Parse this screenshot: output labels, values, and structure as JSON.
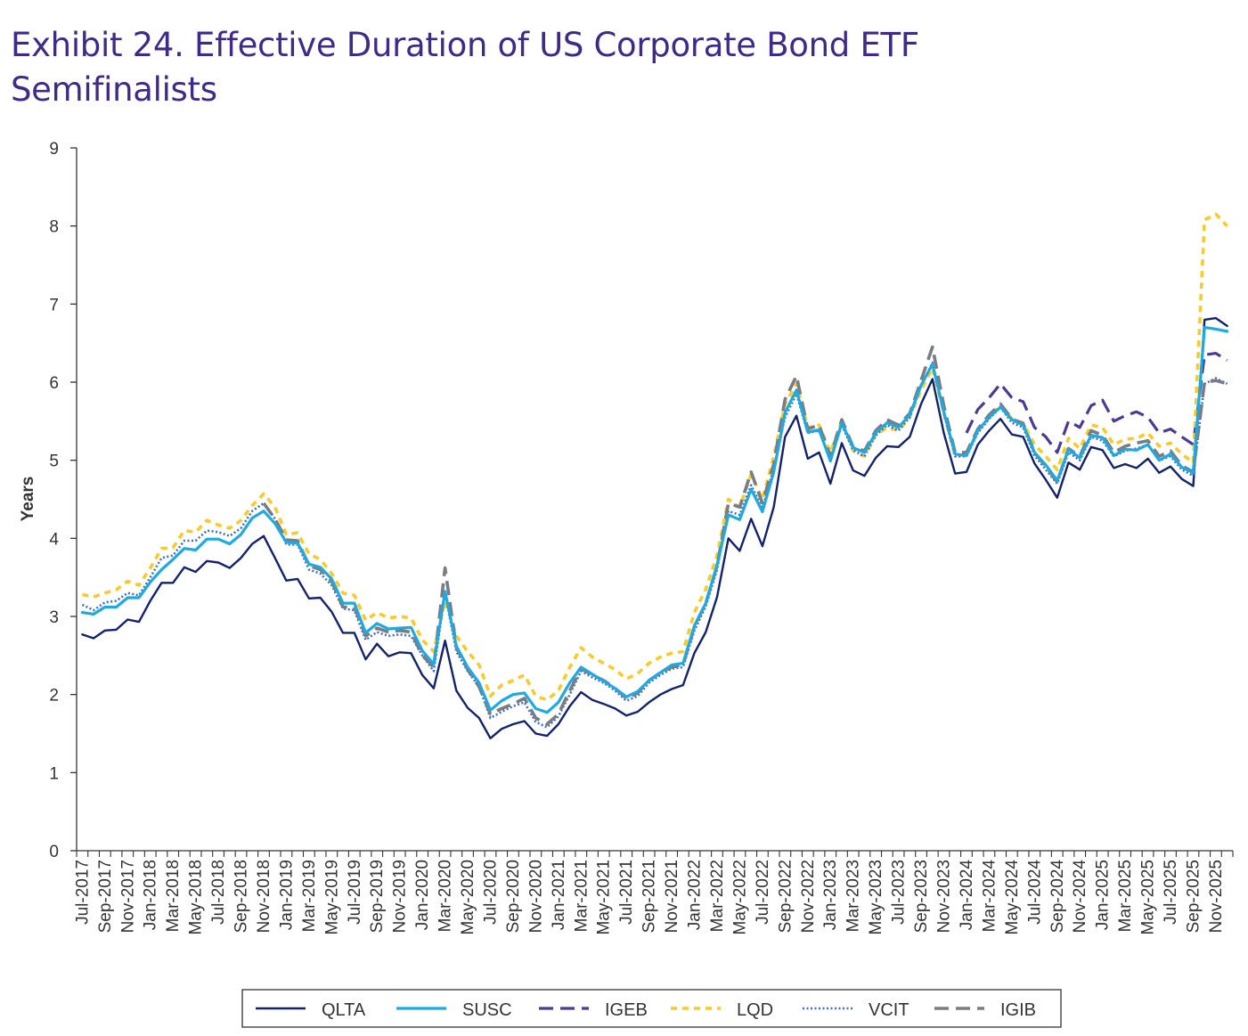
{
  "title": "Exhibit 24. Effective Duration of US Corporate Bond ETF Semifinalists",
  "chart_data": {
    "type": "line",
    "title": "Exhibit 24. Effective Duration of US Corporate Bond ETF Semifinalists",
    "xlabel": "",
    "ylabel": "Years",
    "ylim": [
      0,
      9
    ],
    "yticks": [
      0,
      1,
      2,
      3,
      4,
      5,
      6,
      7,
      8,
      9
    ],
    "grid": false,
    "legend_position": "bottom",
    "x": [
      "Jul-2017",
      "Aug-2017",
      "Sep-2017",
      "Oct-2017",
      "Nov-2017",
      "Dec-2017",
      "Jan-2018",
      "Feb-2018",
      "Mar-2018",
      "Apr-2018",
      "May-2018",
      "Jun-2018",
      "Jul-2018",
      "Aug-2018",
      "Sep-2018",
      "Oct-2018",
      "Nov-2018",
      "Dec-2018",
      "Jan-2019",
      "Feb-2019",
      "Mar-2019",
      "Apr-2019",
      "May-2019",
      "Jun-2019",
      "Jul-2019",
      "Aug-2019",
      "Sep-2019",
      "Oct-2019",
      "Nov-2019",
      "Dec-2019",
      "Jan-2020",
      "Feb-2020",
      "Mar-2020",
      "Apr-2020",
      "May-2020",
      "Jun-2020",
      "Jul-2020",
      "Aug-2020",
      "Sep-2020",
      "Oct-2020",
      "Nov-2020",
      "Dec-2020",
      "Jan-2021",
      "Feb-2021",
      "Mar-2021",
      "Apr-2021",
      "May-2021",
      "Jun-2021",
      "Jul-2021",
      "Aug-2021",
      "Sep-2021",
      "Oct-2021",
      "Nov-2021",
      "Dec-2021",
      "Jan-2022",
      "Feb-2022",
      "Mar-2022",
      "Apr-2022",
      "May-2022",
      "Jun-2022",
      "Jul-2022",
      "Aug-2022",
      "Sep-2022",
      "Oct-2022",
      "Nov-2022",
      "Dec-2022",
      "Jan-2023",
      "Feb-2023",
      "Mar-2023",
      "Apr-2023",
      "May-2023",
      "Jun-2023",
      "Jul-2023",
      "Aug-2023",
      "Sep-2023",
      "Oct-2023",
      "Nov-2023",
      "Dec-2023",
      "Jan-2024",
      "Feb-2024",
      "Mar-2024",
      "Apr-2024",
      "May-2024",
      "Jun-2024",
      "Jul-2024",
      "Aug-2024",
      "Sep-2024",
      "Oct-2024",
      "Nov-2024",
      "Dec-2024",
      "Jan-2025",
      "Feb-2025",
      "Mar-2025",
      "Apr-2025",
      "May-2025",
      "Jun-2025",
      "Jul-2025",
      "Aug-2025",
      "Sep-2025",
      "Oct-2025",
      "Nov-2025",
      "Dec-2025"
    ],
    "x_tick_labels": [
      "Jul-2017",
      "Sep-2017",
      "Nov-2017",
      "Jan-2018",
      "Mar-2018",
      "May-2018",
      "Jul-2018",
      "Sep-2018",
      "Nov-2018",
      "Jan-2019",
      "Mar-2019",
      "May-2019",
      "Jul-2019",
      "Sep-2019",
      "Nov-2019",
      "Jan-2020",
      "Mar-2020",
      "May-2020",
      "Jul-2020",
      "Sep-2020",
      "Nov-2020",
      "Jan-2021",
      "Mar-2021",
      "May-2021",
      "Jul-2021",
      "Sep-2021",
      "Nov-2021",
      "Jan-2022",
      "Mar-2022",
      "May-2022",
      "Jul-2022",
      "Sep-2022",
      "Nov-2022",
      "Jan-2023",
      "Mar-2023",
      "May-2023",
      "Jul-2023",
      "Sep-2023",
      "Nov-2023",
      "Jan-2024",
      "Mar-2024",
      "May-2024",
      "Jul-2024",
      "Sep-2024",
      "Nov-2024",
      "Jan-2025",
      "Mar-2025",
      "May-2025",
      "Jul-2025",
      "Sep-2025",
      "Nov-2025"
    ],
    "series": [
      {
        "name": "QLTA",
        "color": "#13226b",
        "style": "solid",
        "values": [
          2.77,
          2.72,
          2.82,
          2.83,
          2.96,
          2.93,
          3.2,
          3.43,
          3.43,
          3.63,
          3.57,
          3.71,
          3.69,
          3.62,
          3.75,
          3.93,
          4.03,
          3.75,
          3.46,
          3.48,
          3.23,
          3.24,
          3.06,
          2.79,
          2.79,
          2.45,
          2.65,
          2.49,
          2.54,
          2.53,
          2.25,
          2.08,
          2.69,
          2.05,
          1.83,
          1.7,
          1.44,
          1.56,
          1.62,
          1.66,
          1.5,
          1.47,
          1.62,
          1.85,
          2.03,
          1.93,
          1.88,
          1.82,
          1.73,
          1.78,
          1.9,
          2.0,
          2.07,
          2.12,
          2.53,
          2.8,
          3.25,
          4.0,
          3.84,
          4.25,
          3.9,
          4.4,
          5.3,
          5.57,
          5.02,
          5.1,
          4.7,
          5.22,
          4.87,
          4.8,
          5.03,
          5.18,
          5.17,
          5.3,
          5.72,
          6.04,
          5.35,
          4.83,
          4.85,
          5.2,
          5.38,
          5.53,
          5.33,
          5.3,
          4.96,
          4.75,
          4.52,
          4.97,
          4.88,
          5.17,
          5.13,
          4.9,
          4.95,
          4.9,
          5.02,
          4.84,
          4.92,
          4.76,
          4.67,
          6.8,
          6.82,
          6.72
        ]
      },
      {
        "name": "SUSC",
        "color": "#1fa9e1",
        "style": "solid",
        "values": [
          3.05,
          3.03,
          3.12,
          3.12,
          3.24,
          3.24,
          3.44,
          3.6,
          3.73,
          3.87,
          3.85,
          3.99,
          3.99,
          3.93,
          4.05,
          4.26,
          4.35,
          4.19,
          3.95,
          3.94,
          3.67,
          3.63,
          3.48,
          3.17,
          3.17,
          2.79,
          2.91,
          2.84,
          2.85,
          2.86,
          2.56,
          2.39,
          3.32,
          2.62,
          2.35,
          2.15,
          1.8,
          1.92,
          2.0,
          2.02,
          1.82,
          1.77,
          1.9,
          2.15,
          2.35,
          2.26,
          2.17,
          2.08,
          1.97,
          2.04,
          2.18,
          2.28,
          2.38,
          2.4,
          2.88,
          3.17,
          3.66,
          4.3,
          4.24,
          4.63,
          4.34,
          4.85,
          5.61,
          5.9,
          5.36,
          5.39,
          4.99,
          5.48,
          5.16,
          5.1,
          5.35,
          5.48,
          5.42,
          5.58,
          5.96,
          6.23,
          5.62,
          5.08,
          5.06,
          5.38,
          5.55,
          5.68,
          5.52,
          5.45,
          5.1,
          4.94,
          4.74,
          5.14,
          5.03,
          5.32,
          5.29,
          5.06,
          5.14,
          5.13,
          5.2,
          5.0,
          5.08,
          4.91,
          4.84,
          6.7,
          6.68,
          6.65
        ]
      },
      {
        "name": "IGEB",
        "color": "#4e3a92",
        "style": "longdash",
        "values": [
          null,
          null,
          null,
          null,
          null,
          null,
          null,
          null,
          null,
          null,
          null,
          null,
          null,
          null,
          null,
          null,
          null,
          null,
          null,
          null,
          null,
          null,
          null,
          null,
          null,
          null,
          null,
          null,
          null,
          null,
          null,
          null,
          null,
          null,
          null,
          null,
          null,
          null,
          null,
          null,
          null,
          null,
          null,
          null,
          null,
          null,
          null,
          null,
          null,
          null,
          null,
          null,
          null,
          null,
          null,
          null,
          null,
          null,
          null,
          null,
          null,
          null,
          null,
          null,
          null,
          null,
          null,
          null,
          null,
          null,
          null,
          null,
          null,
          null,
          null,
          null,
          null,
          null,
          5.35,
          5.65,
          5.8,
          5.98,
          5.8,
          5.75,
          5.42,
          5.3,
          5.1,
          5.5,
          5.42,
          5.7,
          5.77,
          5.5,
          5.57,
          5.62,
          5.55,
          5.35,
          5.4,
          5.3,
          5.2,
          6.35,
          6.37,
          6.28
        ]
      },
      {
        "name": "LQD",
        "color": "#f6cb2a",
        "style": "shortdash",
        "values": [
          3.28,
          3.25,
          3.3,
          3.34,
          3.45,
          3.4,
          3.62,
          3.87,
          3.88,
          4.1,
          4.08,
          4.23,
          4.17,
          4.13,
          4.23,
          4.42,
          4.57,
          4.4,
          4.05,
          4.07,
          3.8,
          3.73,
          3.55,
          3.3,
          3.27,
          2.95,
          3.05,
          2.98,
          3.0,
          2.98,
          2.7,
          2.55,
          3.2,
          2.75,
          2.55,
          2.38,
          1.98,
          2.12,
          2.18,
          2.25,
          1.98,
          1.93,
          2.05,
          2.35,
          2.6,
          2.48,
          2.4,
          2.32,
          2.2,
          2.27,
          2.4,
          2.48,
          2.53,
          2.55,
          3.05,
          3.35,
          3.78,
          4.5,
          4.4,
          4.82,
          4.5,
          5.05,
          5.72,
          5.98,
          5.42,
          5.45,
          5.1,
          5.5,
          5.12,
          5.05,
          5.32,
          5.42,
          5.38,
          5.55,
          5.9,
          6.18,
          5.6,
          5.05,
          5.08,
          5.37,
          5.55,
          5.7,
          5.53,
          5.48,
          5.2,
          5.05,
          4.88,
          5.28,
          5.15,
          5.45,
          5.42,
          5.2,
          5.27,
          5.28,
          5.35,
          5.18,
          5.22,
          5.08,
          4.97,
          8.08,
          8.15,
          8.0
        ]
      },
      {
        "name": "VCIT",
        "color": "#3f6fc5",
        "style": "dotted",
        "values": [
          3.15,
          3.08,
          3.18,
          3.2,
          3.3,
          3.27,
          3.5,
          3.75,
          3.78,
          3.97,
          3.97,
          4.1,
          4.08,
          4.03,
          4.13,
          4.35,
          4.45,
          4.25,
          3.92,
          3.92,
          3.6,
          3.55,
          3.4,
          3.1,
          3.08,
          2.7,
          2.8,
          2.75,
          2.77,
          2.75,
          2.5,
          2.3,
          3.3,
          2.55,
          2.3,
          2.1,
          1.7,
          1.78,
          1.85,
          1.9,
          1.65,
          1.58,
          1.72,
          2.0,
          2.3,
          2.22,
          2.15,
          2.05,
          1.92,
          1.98,
          2.15,
          2.25,
          2.33,
          2.35,
          2.82,
          3.13,
          3.6,
          4.35,
          4.3,
          4.68,
          4.38,
          4.9,
          5.55,
          5.85,
          5.35,
          5.38,
          5.0,
          5.45,
          5.13,
          5.05,
          5.32,
          5.45,
          5.38,
          5.55,
          5.95,
          6.25,
          5.6,
          5.05,
          5.05,
          5.35,
          5.53,
          5.68,
          5.48,
          5.42,
          5.06,
          4.88,
          4.7,
          5.1,
          5.0,
          5.3,
          5.25,
          5.05,
          5.12,
          5.15,
          5.2,
          5.0,
          5.05,
          4.88,
          4.8,
          5.98,
          6.05,
          5.98
        ]
      },
      {
        "name": "IGIB",
        "color": "#7a7c85",
        "style": "longdash",
        "values": [
          null,
          null,
          null,
          null,
          null,
          null,
          null,
          null,
          null,
          null,
          null,
          null,
          null,
          null,
          null,
          null,
          4.45,
          4.25,
          3.98,
          3.97,
          3.65,
          3.6,
          3.45,
          3.12,
          3.12,
          2.75,
          2.85,
          2.8,
          2.82,
          2.8,
          2.5,
          2.35,
          3.62,
          2.6,
          2.32,
          2.1,
          1.75,
          1.82,
          1.88,
          1.95,
          1.7,
          1.62,
          1.75,
          2.05,
          2.33,
          2.25,
          2.18,
          2.08,
          1.95,
          2.02,
          2.18,
          2.28,
          2.35,
          2.38,
          2.87,
          3.17,
          3.65,
          4.45,
          4.4,
          4.85,
          4.45,
          4.95,
          5.78,
          6.08,
          5.4,
          5.45,
          5.05,
          5.52,
          5.17,
          5.12,
          5.38,
          5.52,
          5.45,
          5.6,
          6.02,
          6.45,
          5.7,
          5.1,
          5.1,
          5.4,
          5.58,
          5.72,
          5.53,
          5.47,
          5.1,
          4.92,
          4.72,
          5.15,
          5.05,
          5.38,
          5.32,
          5.1,
          5.18,
          5.22,
          5.25,
          5.05,
          5.12,
          4.93,
          4.85,
          6.0,
          6.02,
          5.98
        ]
      }
    ]
  }
}
